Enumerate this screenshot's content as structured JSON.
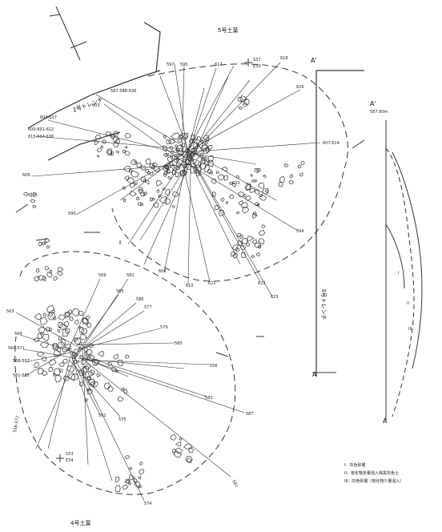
{
  "features": {
    "pit5_title": "5号土葉",
    "pit4_title": "4号土葉",
    "trench2_label": "2号トレンチ",
    "trench3_label": "3号トレンチ"
  },
  "section": {
    "marker_top": "A'",
    "marker_bottom": "A",
    "elevation": "587.90m",
    "layer_labels": [
      "I",
      "II",
      "III"
    ]
  },
  "points": {
    "s37": {
      "code": "S37",
      "coord": "E30"
    },
    "s33": {
      "code": "S33",
      "coord": "E34"
    }
  },
  "artifact_labels_upper": [
    {
      "text": "587-588-638"
    },
    {
      "text": "604-637"
    },
    {
      "text": "600-601-612"
    },
    {
      "text": "615-634-636"
    },
    {
      "text": "606"
    },
    {
      "text": "590"
    },
    {
      "text": "607-614"
    },
    {
      "text": "617"
    },
    {
      "text": "618"
    },
    {
      "text": "626"
    },
    {
      "text": "603"
    },
    {
      "text": "594"
    },
    {
      "text": "608"
    },
    {
      "text": "610"
    },
    {
      "text": "621"
    },
    {
      "text": "622"
    },
    {
      "text": "623"
    },
    {
      "text": "633"
    },
    {
      "text": "595"
    },
    {
      "text": "597"
    }
  ],
  "artifact_labels_lower": [
    {
      "text": "563"
    },
    {
      "text": "584"
    },
    {
      "text": "564-571"
    },
    {
      "text": "568-557"
    },
    {
      "text": "561-585"
    },
    {
      "text": "558-572"
    },
    {
      "text": "586"
    },
    {
      "text": "556"
    },
    {
      "text": "587"
    },
    {
      "text": "583"
    },
    {
      "text": "580"
    },
    {
      "text": "579"
    },
    {
      "text": "574"
    },
    {
      "text": "582"
    },
    {
      "text": "562"
    },
    {
      "text": "569"
    },
    {
      "text": "565"
    },
    {
      "text": "575"
    },
    {
      "text": "581"
    },
    {
      "text": "577"
    }
  ],
  "legend": [
    "I：灰色砂層",
    "II：炭化物多量混入褐黒灰色土",
    "III：灰色砂層（炭化物少量混入）"
  ]
}
